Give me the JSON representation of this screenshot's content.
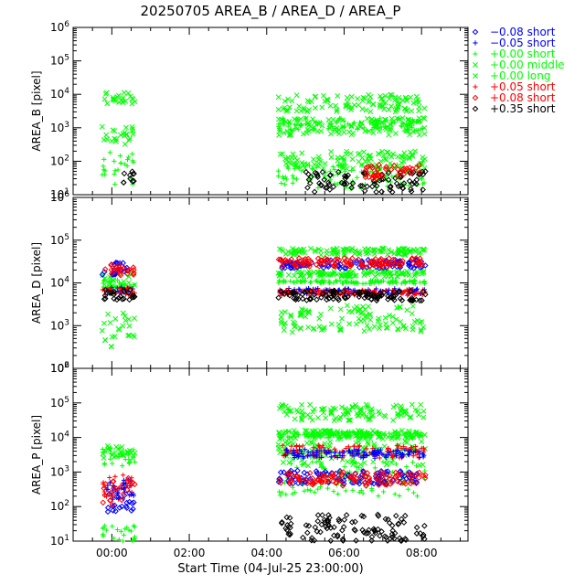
{
  "title": "20250705 AREA_B / AREA_D / AREA_P",
  "xlabel": "Start Time (04-Jul-25 23:00:00)",
  "legend": [
    {
      "symbol": "diamond",
      "color": "#0000ff",
      "text": "−0.08 short"
    },
    {
      "symbol": "plus",
      "color": "#0000ff",
      "text": "−0.05 short"
    },
    {
      "symbol": "plus",
      "color": "#00ff00",
      "text": "+0.00 short"
    },
    {
      "symbol": "x",
      "color": "#00ff00",
      "text": "+0.00 middle"
    },
    {
      "symbol": "x",
      "color": "#00ff00",
      "text": "+0.00 long"
    },
    {
      "symbol": "plus",
      "color": "#ff0000",
      "text": "+0.05 short"
    },
    {
      "symbol": "diamond",
      "color": "#ff0000",
      "text": "+0.08 short"
    },
    {
      "symbol": "diamond",
      "color": "#000000",
      "text": "+0.35 short"
    }
  ],
  "chart_data": {
    "type": "scatter",
    "x_ticks": [
      "00:00",
      "02:00",
      "04:00",
      "06:00",
      "08:00"
    ],
    "x_tick_hours": [
      0,
      2,
      4,
      6,
      8
    ],
    "xlim_hours": [
      -1,
      9.2
    ],
    "panels": [
      {
        "ylabel": "AREA_B [pixel]",
        "ylim": [
          10,
          1000000
        ],
        "scale": "log",
        "y_tick_exponents": [
          1,
          2,
          3,
          4,
          5,
          6
        ],
        "series": [
          {
            "marker": "x",
            "color": "#00ff00",
            "segments": [
              {
                "x": [
                  -0.25,
                  0.6
                ],
                "levels": [
                  [
                    300,
                    1200
                  ],
                  [
                    5000,
                    12000
                  ]
                ]
              },
              {
                "x": [
                  4.3,
                  8.1
                ],
                "levels": [
                  [
                    600,
                    2000
                  ],
                  [
                    3000,
                    10000
                  ],
                  [
                    60,
                    200
                  ]
                ]
              }
            ]
          },
          {
            "marker": "plus",
            "color": "#00ff00",
            "segments": [
              {
                "x": [
                  -0.25,
                  0.6
                ],
                "levels": [
                  [
                    20,
                    200
                  ]
                ]
              },
              {
                "x": [
                  4.3,
                  8.1
                ],
                "levels": [
                  [
                    800,
                    2000
                  ],
                  [
                    15,
                    80
                  ]
                ]
              }
            ]
          },
          {
            "marker": "diamond",
            "color": "#000000",
            "segments": [
              {
                "x": [
                  0.3,
                  0.6
                ],
                "levels": [
                  [
                    20,
                    60
                  ]
                ]
              },
              {
                "x": [
                  5.0,
                  8.1
                ],
                "levels": [
                  [
                    12,
                    50
                  ]
                ]
              }
            ]
          },
          {
            "marker": "diamond",
            "color": "#ff0000",
            "segments": [
              {
                "x": [
                  6.5,
                  8.0
                ],
                "levels": [
                  [
                    30,
                    80
                  ]
                ]
              }
            ]
          }
        ]
      },
      {
        "ylabel": "AREA_D [pixel]",
        "ylim": [
          100,
          1000000
        ],
        "scale": "log",
        "y_tick_exponents": [
          2,
          3,
          4,
          5,
          6
        ],
        "series": [
          {
            "marker": "x",
            "color": "#00ff00",
            "segments": [
              {
                "x": [
                  -0.25,
                  0.6
                ],
                "levels": [
                  [
                    6000,
                    20000
                  ],
                  [
                    300,
                    2000
                  ]
                ]
              },
              {
                "x": [
                  4.3,
                  8.1
                ],
                "levels": [
                  [
                    45000,
                    65000
                  ],
                  [
                    14000,
                    19000
                  ],
                  [
                    700,
                    3000
                  ]
                ]
              }
            ]
          },
          {
            "marker": "plus",
            "color": "#00ff00",
            "segments": [
              {
                "x": [
                  -0.25,
                  0.6
                ],
                "levels": [
                  [
                    7000,
                    12000
                  ]
                ]
              },
              {
                "x": [
                  4.3,
                  8.1
                ],
                "levels": [
                  [
                    9500,
                    11500
                  ]
                ]
              }
            ]
          },
          {
            "marker": "diamond",
            "color": "#0000ff",
            "segments": [
              {
                "x": [
                  -0.25,
                  0.6
                ],
                "levels": [
                  [
                    15000,
                    30000
                  ]
                ]
              },
              {
                "x": [
                  4.3,
                  8.1
                ],
                "levels": [
                  [
                    22000,
                    35000
                  ]
                ]
              }
            ]
          },
          {
            "marker": "diamond",
            "color": "#ff0000",
            "segments": [
              {
                "x": [
                  -0.25,
                  0.6
                ],
                "levels": [
                  [
                    15000,
                    28000
                  ]
                ]
              },
              {
                "x": [
                  4.3,
                  8.1
                ],
                "levels": [
                  [
                    24000,
                    38000
                  ]
                ]
              }
            ]
          },
          {
            "marker": "plus",
            "color": "#0000ff",
            "segments": [
              {
                "x": [
                  -0.25,
                  0.6
                ],
                "levels": [
                  [
                    5500,
                    8000
                  ]
                ]
              },
              {
                "x": [
                  4.3,
                  8.1
                ],
                "levels": [
                  [
                    5500,
                    7500
                  ]
                ]
              }
            ]
          },
          {
            "marker": "plus",
            "color": "#ff0000",
            "segments": [
              {
                "x": [
                  -0.25,
                  0.6
                ],
                "levels": [
                  [
                    5000,
                    7500
                  ]
                ]
              },
              {
                "x": [
                  4.3,
                  8.1
                ],
                "levels": [
                  [
                    5000,
                    7000
                  ]
                ]
              }
            ]
          },
          {
            "marker": "diamond",
            "color": "#000000",
            "segments": [
              {
                "x": [
                  -0.25,
                  0.6
                ],
                "levels": [
                  [
                    4000,
                    7000
                  ]
                ]
              },
              {
                "x": [
                  4.3,
                  8.1
                ],
                "levels": [
                  [
                    3800,
                    6500
                  ]
                ]
              }
            ]
          }
        ]
      },
      {
        "ylabel": "AREA_P [pixel]",
        "ylim": [
          10,
          1000000
        ],
        "scale": "log",
        "y_tick_exponents": [
          1,
          2,
          3,
          4,
          5,
          6
        ],
        "series": [
          {
            "marker": "x",
            "color": "#00ff00",
            "segments": [
              {
                "x": [
                  -0.25,
                  0.6
                ],
                "levels": [
                  [
                    2500,
                    6000
                  ]
                ]
              },
              {
                "x": [
                  4.3,
                  8.1
                ],
                "levels": [
                  [
                    9000,
                    16000
                  ],
                  [
                    1500,
                    8000
                  ],
                  [
                    30000,
                    90000
                  ]
                ]
              }
            ]
          },
          {
            "marker": "plus",
            "color": "#00ff00",
            "segments": [
              {
                "x": [
                  -0.25,
                  0.6
                ],
                "levels": [
                  [
                    1500,
                    5000
                  ],
                  [
                    10,
                    30
                  ]
                ]
              },
              {
                "x": [
                  4.3,
                  8.1
                ],
                "levels": [
                  [
                    10000,
                    15000
                  ],
                  [
                    200,
                    2000
                  ]
                ]
              }
            ]
          },
          {
            "marker": "plus",
            "color": "#ff0000",
            "segments": [
              {
                "x": [
                  -0.25,
                  0.6
                ],
                "levels": [
                  [
                    150,
                    900
                  ]
                ]
              },
              {
                "x": [
                  4.3,
                  8.1
                ],
                "levels": [
                  [
                    2500,
                    6000
                  ]
                ]
              }
            ]
          },
          {
            "marker": "plus",
            "color": "#0000ff",
            "segments": [
              {
                "x": [
                  -0.25,
                  0.6
                ],
                "levels": [
                  [
                    150,
                    600
                  ]
                ]
              },
              {
                "x": [
                  4.3,
                  8.1
                ],
                "levels": [
                  [
                    2500,
                    4500
                  ]
                ]
              }
            ]
          },
          {
            "marker": "diamond",
            "color": "#0000ff",
            "segments": [
              {
                "x": [
                  -0.25,
                  0.6
                ],
                "levels": [
                  [
                    70,
                    400
                  ]
                ]
              },
              {
                "x": [
                  4.3,
                  8.1
                ],
                "levels": [
                  [
                    450,
                    1100
                  ]
                ]
              }
            ]
          },
          {
            "marker": "diamond",
            "color": "#ff0000",
            "segments": [
              {
                "x": [
                  -0.25,
                  0.6
                ],
                "levels": [
                  [
                    100,
                    800
                  ]
                ]
              },
              {
                "x": [
                  4.3,
                  8.1
                ],
                "levels": [
                  [
                    400,
                    1000
                  ]
                ]
              }
            ]
          },
          {
            "marker": "diamond",
            "color": "#000000",
            "segments": [
              {
                "x": [
                  4.3,
                  8.1
                ],
                "levels": [
                  [
                    10,
                    60
                  ]
                ]
              }
            ]
          }
        ]
      }
    ]
  }
}
